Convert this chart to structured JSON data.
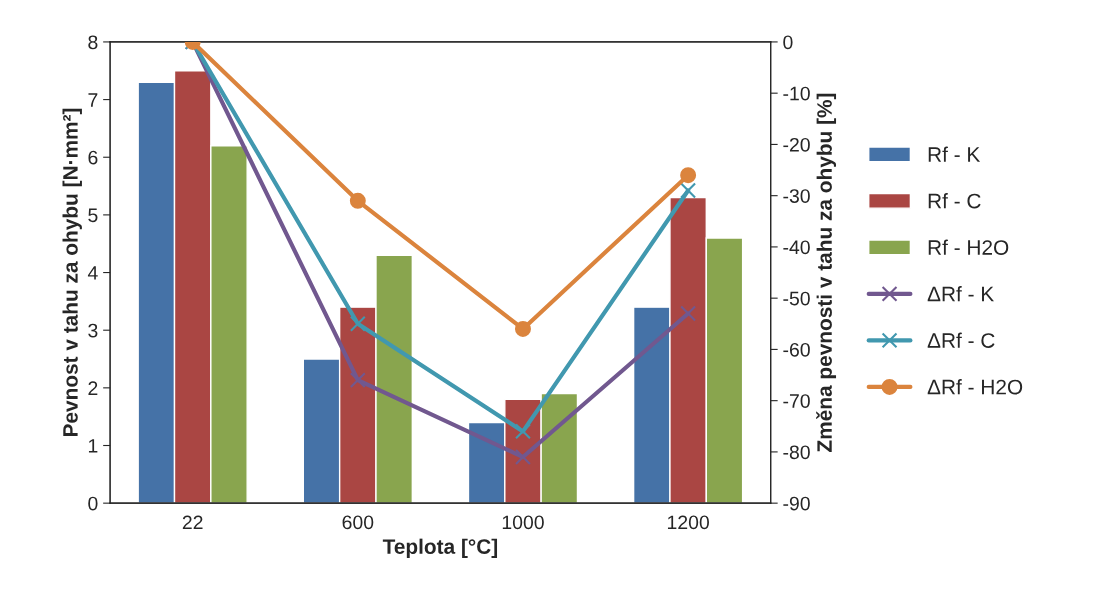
{
  "chart_data": {
    "type": "bar",
    "xlabel": "Teplota [°C]",
    "ylabel": "Pevnost v tahu za ohybu [N·mm²]",
    "y2label": "Změna pevnosti v tahu za ohybu [%]",
    "categories": [
      "22",
      "600",
      "1000",
      "1200"
    ],
    "series": [
      {
        "name": "Rf - K",
        "color": "#4572a7",
        "values": [
          7.3,
          2.5,
          1.4,
          3.4
        ]
      },
      {
        "name": "Rf - C",
        "color": "#aa4643",
        "values": [
          7.5,
          3.4,
          1.8,
          5.3
        ]
      },
      {
        "name": "Rf - H2O",
        "color": "#89a54e",
        "values": [
          6.2,
          4.3,
          1.9,
          4.6
        ]
      },
      {
        "name": "ΔRf - K",
        "type": "line",
        "axis": "y2",
        "marker": "cross",
        "color": "#71588f",
        "values": [
          0,
          -66,
          -81,
          -53
        ]
      },
      {
        "name": "ΔRf - C",
        "type": "line",
        "axis": "y2",
        "marker": "cross",
        "color": "#4198af",
        "values": [
          0,
          -55,
          -76,
          -29
        ]
      },
      {
        "name": "ΔRf - H2O",
        "type": "line",
        "axis": "y2",
        "marker": "circle",
        "color": "#db843d",
        "values": [
          0,
          -31,
          -56,
          -26
        ]
      }
    ],
    "ylim": [
      0,
      8
    ],
    "yticks": [
      0,
      1,
      2,
      3,
      4,
      5,
      6,
      7,
      8
    ],
    "y2lim": [
      -90,
      0
    ],
    "y2ticks": [
      -90,
      -80,
      -70,
      -60,
      -50,
      -40,
      -30,
      -20,
      -10,
      0
    ],
    "grid": false,
    "legend": "right"
  }
}
